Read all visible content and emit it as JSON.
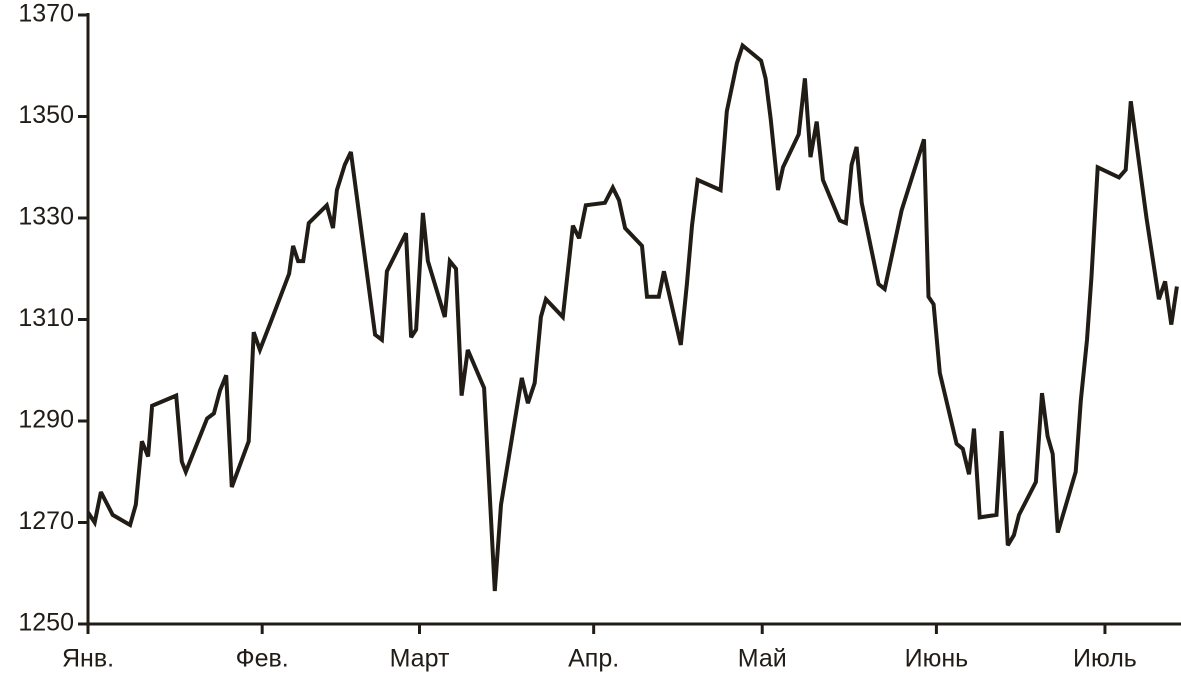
{
  "chart_data": {
    "type": "line",
    "color": "#211c16",
    "x": [
      0,
      1.2,
      2.3,
      4.4,
      7.5,
      8.5,
      9.6,
      10.7,
      11.4,
      15.7,
      16.7,
      17.4,
      21.2,
      22.4,
      23.5,
      24.6,
      25.6,
      28.6,
      29.5,
      30.6,
      32.7,
      35.8,
      36.5,
      37.4,
      38.3,
      39.3,
      42.5,
      43.6,
      44.3,
      45.7,
      46.8,
      51.1,
      52.3,
      53.2,
      56.6,
      57.5,
      58.4,
      59.6,
      60.5,
      63.5,
      64.4,
      65.5,
      66.5,
      67.6,
      70.5,
      72.4,
      73.5,
      77.2,
      78.3,
      79.5,
      80.6,
      81.5,
      84.5,
      86.3,
      87.4,
      88.6,
      92.0,
      93.4,
      94.5,
      95.6,
      98.6,
      99.5,
      101.6,
      102.5,
      105.5,
      106.6,
      107.5,
      108.5,
      112.6,
      113.7,
      115.5,
      116.5,
      119.8,
      120.6,
      121.5,
      122.8,
      123.7,
      126.5,
      127.6,
      128.6,
      129.7,
      130.8,
      133.8,
      134.9,
      135.9,
      136.8,
      137.7,
      140.7,
      141.8,
      144.8,
      148.8,
      149.6,
      150.5,
      151.6,
      154.6,
      155.7,
      156.8,
      157.7,
      158.7,
      161.7,
      162.6,
      163.7,
      164.8,
      165.7,
      168.7,
      169.8,
      170.8,
      171.7,
      172.6,
      175.8,
      176.7,
      177.8,
      178.6,
      179.7,
      183.5,
      184.7,
      185.6,
      188.4,
      190.6,
      191.7,
      192.8,
      193.8
    ],
    "values": [
      1272,
      1270,
      1276,
      1271.5,
      1269.5,
      1273.5,
      1286,
      1283,
      1293,
      1295,
      1282,
      1280,
      1290.5,
      1291.5,
      1296,
      1299,
      1277,
      1286,
      1307.5,
      1304,
      1310,
      1319,
      1324.5,
      1321.5,
      1321.5,
      1329,
      1332.5,
      1328,
      1335.5,
      1340.5,
      1343,
      1307,
      1306,
      1319.5,
      1327,
      1306.5,
      1308,
      1331,
      1321.5,
      1310.5,
      1321.5,
      1320,
      1295,
      1304,
      1296.5,
      1256.5,
      1273.5,
      1298.5,
      1293.5,
      1297.5,
      1310.5,
      1314,
      1310.5,
      1328.5,
      1326,
      1332.5,
      1333,
      1336,
      1333.5,
      1328,
      1324.5,
      1314.5,
      1314.5,
      1319.5,
      1305,
      1317,
      1328.5,
      1337.5,
      1335.5,
      1351,
      1360.5,
      1364,
      1361,
      1357.5,
      1349.5,
      1335.5,
      1340,
      1346.5,
      1357.5,
      1342,
      1349,
      1337.5,
      1329.5,
      1329,
      1340.5,
      1344,
      1333,
      1317,
      1316,
      1331.5,
      1345.5,
      1314.5,
      1313,
      1299.5,
      1285.5,
      1284.5,
      1279.5,
      1288.5,
      1271,
      1271.5,
      1288,
      1265.5,
      1267.5,
      1271.5,
      1278,
      1295.5,
      1287,
      1283.5,
      1268,
      1280,
      1294,
      1306,
      1318.5,
      1340,
      1338,
      1339.5,
      1353,
      1330,
      1314,
      1317.5,
      1309,
      1316.5
    ],
    "xlim": [
      0,
      194
    ],
    "xticks": [
      {
        "value": 0,
        "label": "Янв."
      },
      {
        "value": 31,
        "label": "Фев."
      },
      {
        "value": 59,
        "label": "Март"
      },
      {
        "value": 90,
        "label": "Апр."
      },
      {
        "value": 120,
        "label": "Май"
      },
      {
        "value": 151,
        "label": "Июнь"
      },
      {
        "value": 181,
        "label": "Июль"
      }
    ],
    "ylim": [
      1250,
      1370
    ],
    "yticks": [
      1250,
      1270,
      1290,
      1310,
      1330,
      1350,
      1370
    ]
  }
}
